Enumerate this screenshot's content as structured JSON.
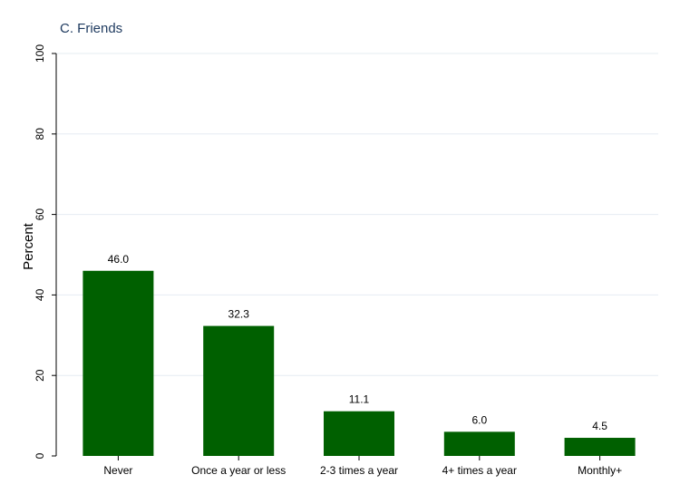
{
  "chart_data": {
    "type": "bar",
    "title": "C. Friends",
    "ylabel": "Percent",
    "xlabel": "",
    "categories": [
      "Never",
      "Once a year or less",
      "2-3 times a year",
      "4+ times a year",
      "Monthly+"
    ],
    "values": [
      46.0,
      32.3,
      11.1,
      6.0,
      4.5
    ],
    "value_labels": [
      "46.0",
      "32.3",
      "11.1",
      "6.0",
      "4.5"
    ],
    "ylim": [
      0,
      100
    ],
    "yticks": [
      0,
      20,
      40,
      60,
      80,
      100
    ],
    "grid": true,
    "bar_color": "#006000"
  }
}
